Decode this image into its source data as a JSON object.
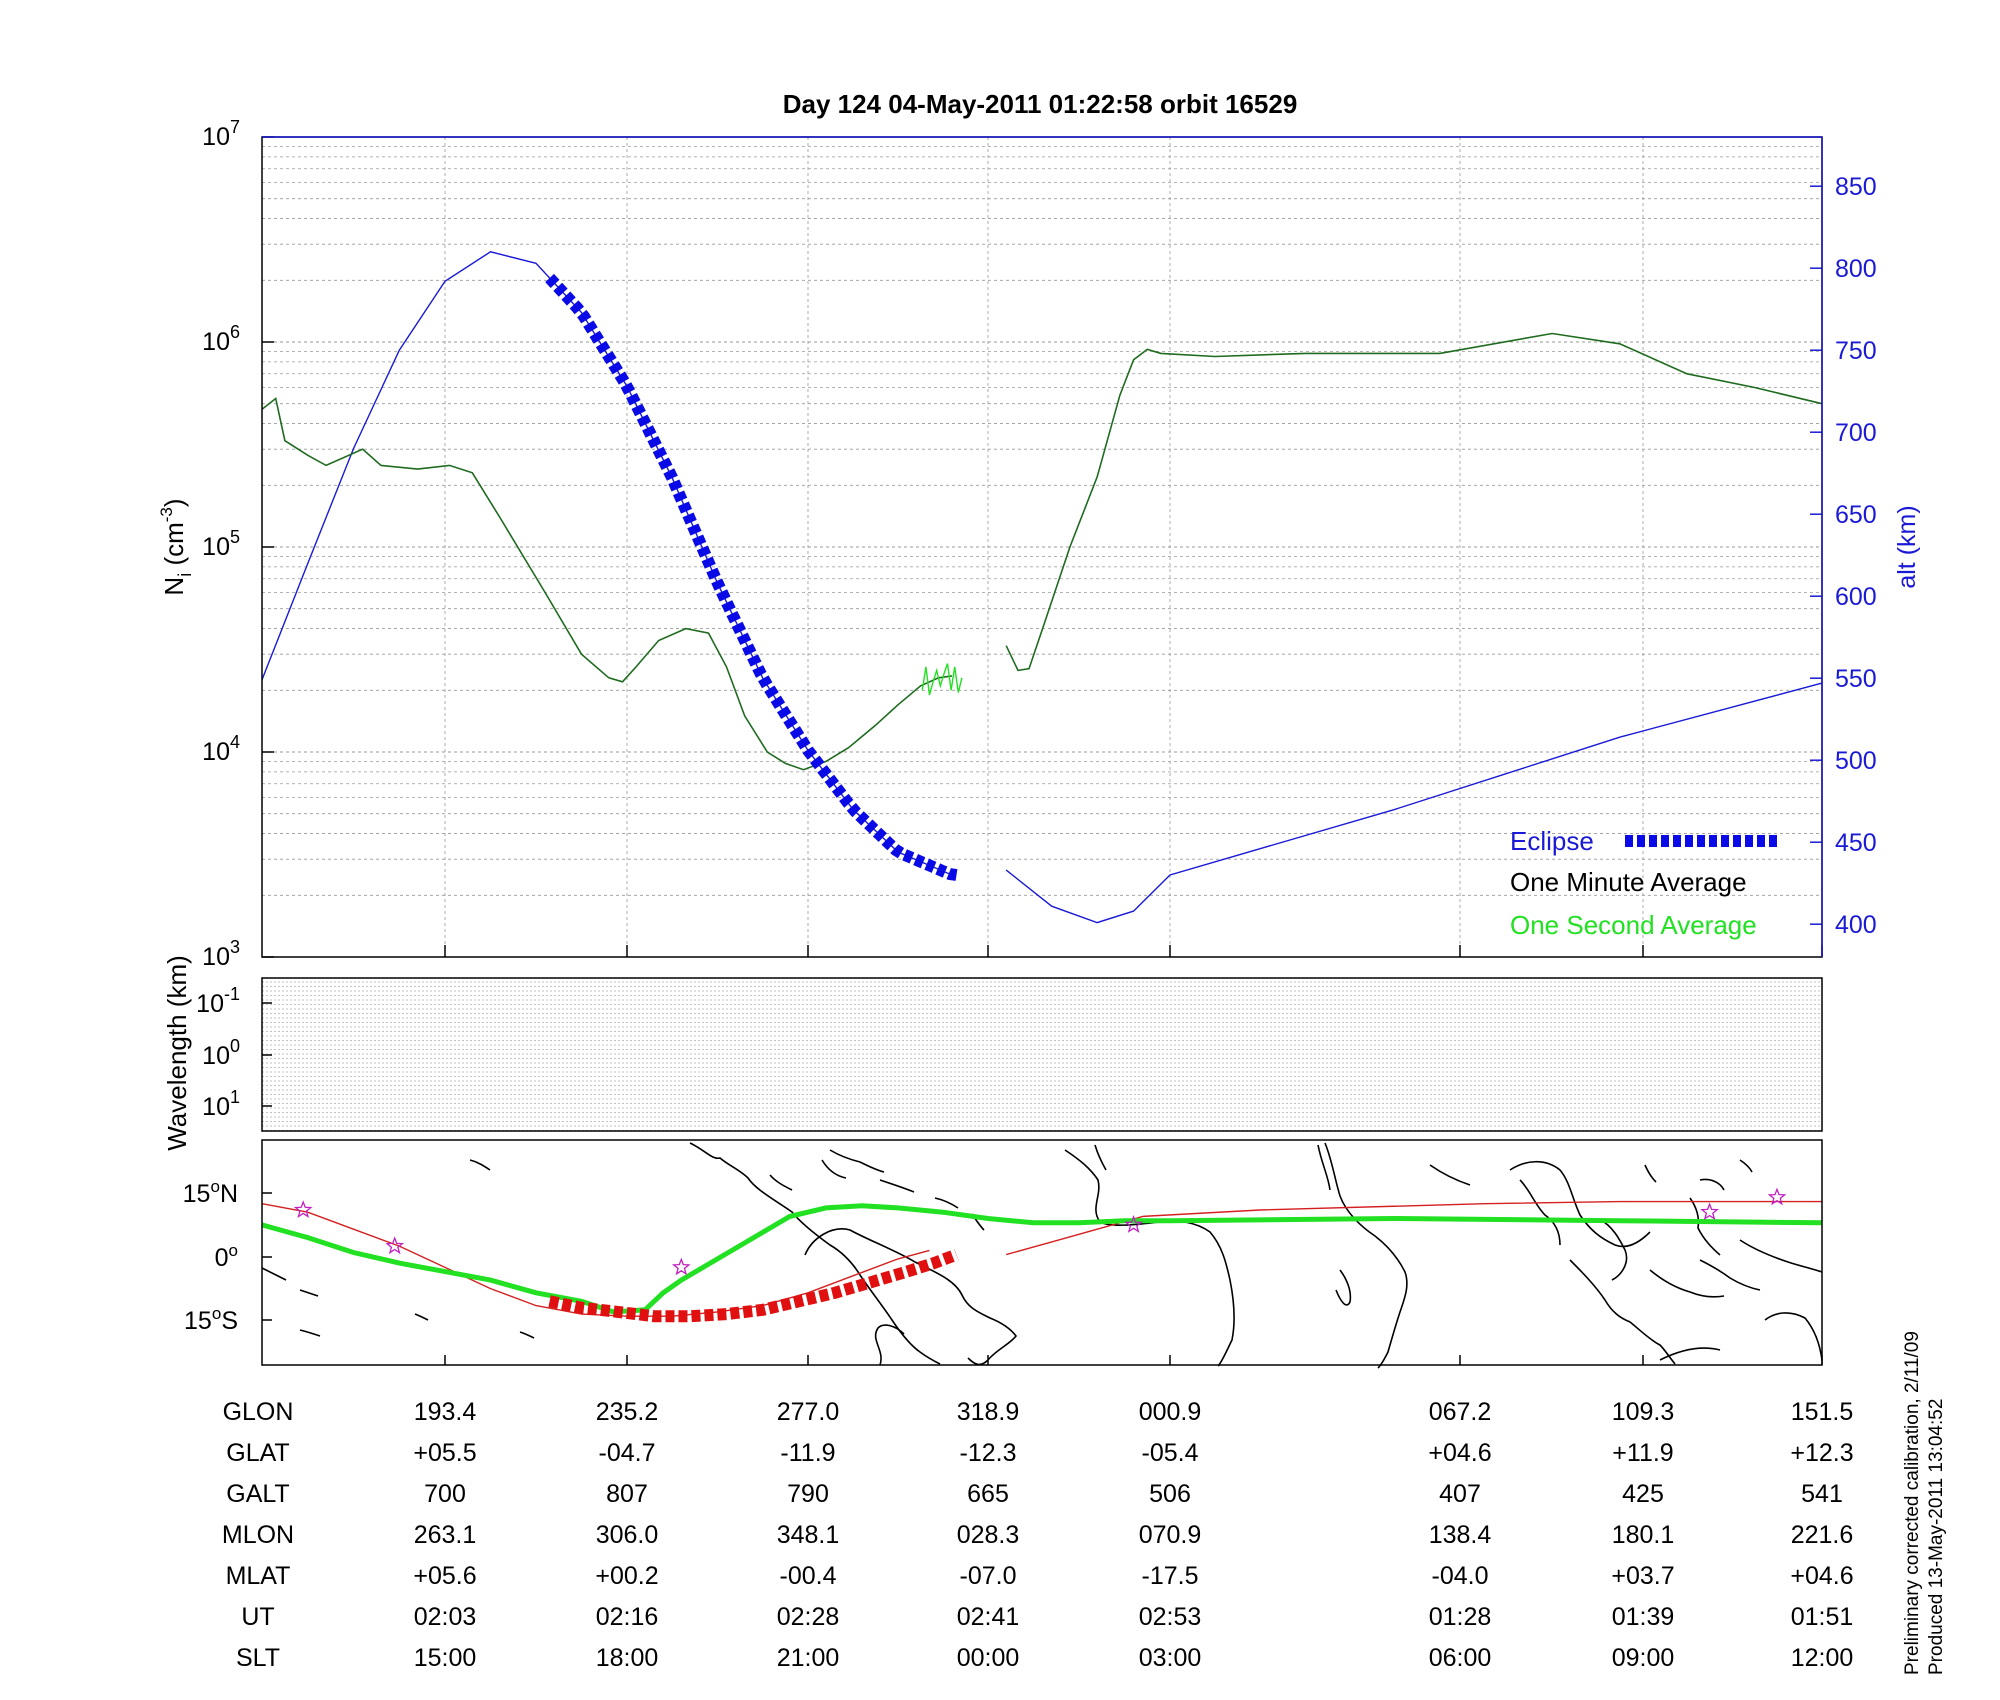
{
  "title": "Day 124  04-May-2011 01:22:58   orbit 16529",
  "side_notes": [
    "Preliminary corrected calibration, 2/11/09",
    "Produced 13-May-2011 13:04:52"
  ],
  "colors": {
    "eclipse": "#0a0ae6",
    "one_minute": "#1f6b1f",
    "one_second": "#22e022",
    "altitude": "#1a1ad6",
    "orbit_track": "#d42020",
    "ground_track": "#22e022",
    "eclipse_track": "#e01010",
    "markers": "#c020c0"
  },
  "chart_data": [
    {
      "id": "density",
      "type": "line",
      "ylabel": "N",
      "ylabel_sub": "i",
      "ylabel_unit": " (cm",
      "ylabel_exp": "-3",
      "ylabel_close": ")",
      "y_scale": "log",
      "ylim": [
        1000,
        10000000
      ],
      "y_ticks": [
        {
          "base": "10",
          "exp": "3"
        },
        {
          "base": "10",
          "exp": "4"
        },
        {
          "base": "10",
          "exp": "5"
        },
        {
          "base": "10",
          "exp": "6"
        },
        {
          "base": "10",
          "exp": "7"
        }
      ],
      "y2label": "alt (km)",
      "y2lim": [
        380,
        880
      ],
      "y2_ticks": [
        "400",
        "450",
        "500",
        "550",
        "600",
        "650",
        "700",
        "750",
        "800",
        "850"
      ],
      "x_ticks_ut": [
        "02:03",
        "02:16",
        "02:28",
        "02:41",
        "02:53",
        "01:28",
        "01:39",
        "01:51"
      ],
      "grid": true,
      "legend": {
        "position": "bottom-right",
        "eclipse": "Eclipse",
        "one_minute": "One Minute Average",
        "one_second": "One Second Average"
      },
      "series": [
        {
          "name": "One Minute Average",
          "segments": [
            [
              [
                0.0,
                470000
              ],
              [
                0.015,
                530000
              ],
              [
                0.025,
                330000
              ],
              [
                0.05,
                280000
              ],
              [
                0.07,
                250000
              ],
              [
                0.11,
                300000
              ],
              [
                0.13,
                250000
              ],
              [
                0.17,
                240000
              ],
              [
                0.205,
                250000
              ],
              [
                0.23,
                230000
              ],
              [
                0.26,
                140000
              ],
              [
                0.31,
                60000
              ],
              [
                0.35,
                30000
              ],
              [
                0.38,
                23000
              ],
              [
                0.395,
                22000
              ],
              [
                0.41,
                26000
              ],
              [
                0.435,
                35000
              ],
              [
                0.465,
                40000
              ],
              [
                0.49,
                38000
              ],
              [
                0.51,
                26000
              ],
              [
                0.53,
                15000
              ],
              [
                0.555,
                10000
              ],
              [
                0.575,
                8800
              ],
              [
                0.595,
                8200
              ],
              [
                0.62,
                9000
              ],
              [
                0.645,
                10500
              ],
              [
                0.675,
                13500
              ],
              [
                0.7,
                17000
              ],
              [
                0.725,
                21000
              ],
              [
                0.745,
                23000
              ],
              [
                0.76,
                23500
              ]
            ],
            [
              [
                0.82,
                33000
              ],
              [
                0.833,
                25000
              ],
              [
                0.845,
                25500
              ],
              [
                0.86,
                40000
              ],
              [
                0.89,
                100000
              ],
              [
                0.92,
                220000
              ],
              [
                0.945,
                550000
              ],
              [
                0.96,
                820000
              ],
              [
                0.975,
                920000
              ],
              [
                0.99,
                880000
              ],
              [
                1.01,
                850000
              ],
              [
                1.03,
                880000
              ],
              [
                1.06,
                880000
              ],
              [
                1.085,
                1100000
              ],
              [
                1.1,
                980000
              ],
              [
                1.115,
                700000
              ],
              [
                1.13,
                600000
              ],
              [
                1.145,
                500000
              ]
            ]
          ]
        },
        {
          "name": "One Second Average",
          "segments": [
            [
              [
                0.727,
                20000
              ],
              [
                0.731,
                26000
              ],
              [
                0.735,
                19000
              ],
              [
                0.739,
                22000
              ],
              [
                0.743,
                25000
              ],
              [
                0.747,
                21000
              ],
              [
                0.751,
                24000
              ],
              [
                0.755,
                27000
              ],
              [
                0.759,
                20000
              ],
              [
                0.763,
                26000
              ],
              [
                0.767,
                19500
              ],
              [
                0.771,
                23000
              ]
            ]
          ]
        }
      ],
      "altitude_series": {
        "name": "alt (km)",
        "segments": [
          [
            [
              0.0,
              549
            ],
            [
              0.05,
              620
            ],
            [
              0.1,
              690
            ],
            [
              0.15,
              750
            ],
            [
              0.2,
              792
            ],
            [
              0.25,
              810
            ],
            [
              0.3,
              803
            ],
            [
              0.35,
              773
            ],
            [
              0.4,
              728
            ],
            [
              0.45,
              672
            ],
            [
              0.5,
              608
            ],
            [
              0.55,
              550
            ],
            [
              0.6,
              506
            ],
            [
              0.65,
              470
            ],
            [
              0.7,
              444
            ],
            [
              0.76,
              430
            ]
          ],
          [
            [
              0.82,
              433
            ],
            [
              0.87,
              411
            ],
            [
              0.92,
              401
            ],
            [
              0.96,
              408
            ],
            [
              1.0,
              430
            ],
            [
              1.05,
              470
            ],
            [
              1.1,
              514
            ],
            [
              1.145,
              547
            ]
          ]
        ]
      },
      "eclipse_range": [
        0.315,
        0.765
      ]
    },
    {
      "id": "wavelength",
      "type": "heatmap",
      "ylabel": "Wavelength (km)",
      "y_ticks": [
        {
          "base": "10",
          "exp": "-1"
        },
        {
          "base": "10",
          "exp": "0"
        },
        {
          "base": "10",
          "exp": "1"
        }
      ]
    },
    {
      "id": "ground_track",
      "type": "line",
      "y_ticks": [
        {
          "val": "15",
          "hem": "N"
        },
        {
          "val": "0",
          "hem": ""
        },
        {
          "val": "15",
          "hem": "S"
        }
      ],
      "ylim": [
        -25,
        28
      ],
      "series": [
        {
          "name": "orbit track",
          "segments": [
            [
              [
                0.0,
                13
              ],
              [
                0.05,
                11
              ],
              [
                0.1,
                7
              ],
              [
                0.15,
                3
              ],
              [
                0.2,
                -2
              ],
              [
                0.25,
                -7
              ],
              [
                0.3,
                -11
              ],
              [
                0.35,
                -13
              ],
              [
                0.4,
                -13.5
              ],
              [
                0.45,
                -13.5
              ],
              [
                0.5,
                -12.5
              ],
              [
                0.55,
                -11
              ],
              [
                0.6,
                -8
              ],
              [
                0.65,
                -4
              ],
              [
                0.7,
                0
              ],
              [
                0.735,
                2
              ]
            ],
            [
              [
                0.82,
                1
              ],
              [
                0.87,
                4
              ],
              [
                0.92,
                7
              ],
              [
                0.97,
                10
              ],
              [
                1.02,
                11.5
              ],
              [
                1.07,
                13
              ],
              [
                1.1,
                13.5
              ],
              [
                1.145,
                13.5
              ]
            ]
          ]
        },
        {
          "name": "ground track",
          "segments": [
            [
              [
                0.0,
                8
              ],
              [
                0.05,
                5
              ],
              [
                0.1,
                1.5
              ],
              [
                0.15,
                -1
              ],
              [
                0.2,
                -3
              ],
              [
                0.25,
                -5
              ],
              [
                0.3,
                -8
              ],
              [
                0.35,
                -10
              ],
              [
                0.385,
                -12.5
              ],
              [
                0.42,
                -12
              ],
              [
                0.44,
                -8
              ],
              [
                0.46,
                -5
              ],
              [
                0.5,
                0
              ],
              [
                0.54,
                5
              ],
              [
                0.58,
                10
              ],
              [
                0.62,
                12
              ],
              [
                0.66,
                12.5
              ],
              [
                0.7,
                12
              ],
              [
                0.75,
                11
              ],
              [
                0.8,
                9.5
              ],
              [
                0.85,
                8.5
              ],
              [
                0.9,
                8.5
              ],
              [
                0.95,
                9
              ],
              [
                1.0,
                9
              ],
              [
                1.05,
                9.5
              ],
              [
                1.1,
                9
              ],
              [
                1.145,
                8.5
              ]
            ]
          ]
        },
        {
          "name": "eclipse track",
          "segments": [
            [
              [
                0.315,
                -10
              ],
              [
                0.35,
                -11.5
              ],
              [
                0.39,
                -12.5
              ],
              [
                0.43,
                -13.5
              ],
              [
                0.47,
                -13.5
              ],
              [
                0.51,
                -13
              ],
              [
                0.55,
                -12
              ],
              [
                0.59,
                -10
              ],
              [
                0.63,
                -8
              ],
              [
                0.67,
                -5.5
              ],
              [
                0.71,
                -3
              ],
              [
                0.74,
                -1
              ],
              [
                0.765,
                1
              ]
            ]
          ]
        }
      ],
      "markers": [
        [
          0.045,
          11.5
        ],
        [
          0.145,
          3
        ],
        [
          0.46,
          -2
        ],
        [
          0.96,
          8
        ],
        [
          1.12,
          11
        ],
        [
          1.135,
          14.5
        ]
      ]
    }
  ],
  "table": {
    "row_labels": [
      "GLON",
      "GLAT",
      "GALT",
      "MLON",
      "MLAT",
      "UT",
      "SLT"
    ],
    "columns": [
      [
        "193.4",
        "+05.5",
        "700",
        "263.1",
        "+05.6",
        "02:03",
        "15:00"
      ],
      [
        "235.2",
        "-04.7",
        "807",
        "306.0",
        "+00.2",
        "02:16",
        "18:00"
      ],
      [
        "277.0",
        "-11.9",
        "790",
        "348.1",
        "-00.4",
        "02:28",
        "21:00"
      ],
      [
        "318.9",
        "-12.3",
        "665",
        "028.3",
        "-07.0",
        "02:41",
        "00:00"
      ],
      [
        "000.9",
        "-05.4",
        "506",
        "070.9",
        "-17.5",
        "02:53",
        "03:00"
      ],
      [
        "067.2",
        "+04.6",
        "407",
        "138.4",
        "-04.0",
        "01:28",
        "06:00"
      ],
      [
        "109.3",
        "+11.9",
        "425",
        "180.1",
        "+03.7",
        "01:39",
        "09:00"
      ],
      [
        "151.5",
        "+12.3",
        "541",
        "221.6",
        "+04.6",
        "01:51",
        "12:00"
      ]
    ]
  }
}
